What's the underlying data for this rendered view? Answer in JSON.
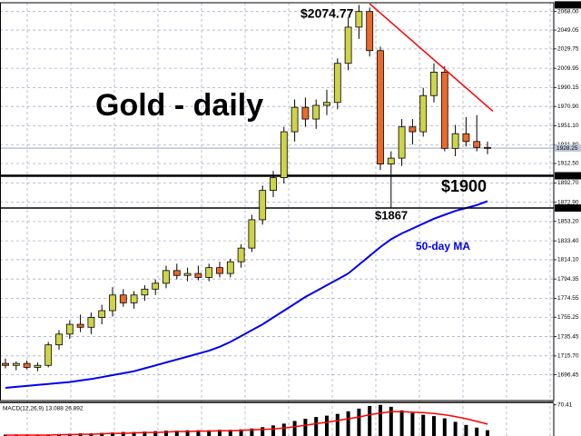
{
  "chart_data": [
    {
      "type": "candlestick",
      "title": "Gold - daily",
      "open": [
        1708,
        1706,
        1708,
        1704,
        1706,
        1727,
        1738,
        1748,
        1745,
        1755,
        1762,
        1778,
        1770,
        1778,
        1784,
        1790,
        1803,
        1798,
        1800,
        1796,
        1806,
        1800,
        1812,
        1826,
        1855,
        1885,
        1898,
        1945,
        1970,
        1958,
        1972,
        1975,
        2015,
        2052,
        2068,
        2028,
        1912,
        1918,
        1950,
        1945,
        1982,
        2006,
        1928,
        1943,
        1935,
        1929
      ],
      "high": [
        1713,
        1710,
        1711,
        1709,
        1730,
        1742,
        1752,
        1758,
        1760,
        1768,
        1786,
        1784,
        1782,
        1788,
        1794,
        1808,
        1810,
        1806,
        1808,
        1810,
        1812,
        1815,
        1830,
        1860,
        1890,
        1905,
        1950,
        1978,
        1980,
        1978,
        1988,
        2020,
        2062,
        2074.77,
        2072,
        2032,
        1925,
        1958,
        1958,
        1990,
        2015,
        2012,
        1952,
        1960,
        1962,
        1935
      ],
      "low": [
        1703,
        1701,
        1702,
        1700,
        1704,
        1722,
        1733,
        1740,
        1738,
        1748,
        1756,
        1766,
        1764,
        1772,
        1778,
        1785,
        1794,
        1792,
        1793,
        1792,
        1796,
        1796,
        1806,
        1822,
        1850,
        1878,
        1892,
        1935,
        1950,
        1948,
        1962,
        1968,
        2008,
        2040,
        2022,
        1906,
        1867,
        1910,
        1932,
        1940,
        1975,
        1925,
        1920,
        1930,
        1925,
        1922
      ],
      "close": [
        1706,
        1708,
        1704,
        1706,
        1727,
        1738,
        1748,
        1745,
        1755,
        1762,
        1778,
        1770,
        1778,
        1784,
        1790,
        1803,
        1798,
        1800,
        1796,
        1806,
        1800,
        1812,
        1826,
        1855,
        1885,
        1898,
        1945,
        1970,
        1958,
        1972,
        1975,
        2015,
        2052,
        2068,
        2028,
        1912,
        1918,
        1950,
        1945,
        1982,
        2006,
        1928,
        1943,
        1935,
        1929,
        1928
      ],
      "up_color": "#cdd44a",
      "down_color": "#ea6a2c",
      "ylim": [
        1670,
        2077
      ],
      "yticks": [
        {
          "value": 2068,
          "label": "2068.00"
        },
        {
          "value": 2049.05,
          "label": "2049.05"
        },
        {
          "value": 2029.75,
          "label": "2029.75"
        },
        {
          "value": 2009.95,
          "label": "2009.95"
        },
        {
          "value": 1990.15,
          "label": "1990.15"
        },
        {
          "value": 1970.9,
          "label": "1970.90"
        },
        {
          "value": 1951.1,
          "label": "1951.10"
        },
        {
          "value": 1931.8,
          "label": "1931.80"
        },
        {
          "value": 1912.5,
          "label": "1912.50"
        },
        {
          "value": 1892.7,
          "label": "1892.70"
        },
        {
          "value": 1872.9,
          "label": "1872.90"
        },
        {
          "value": 1853.2,
          "label": "1853.20"
        },
        {
          "value": 1833.4,
          "label": "1833.40"
        },
        {
          "value": 1814.1,
          "label": "1814.10"
        },
        {
          "value": 1794.35,
          "label": "1794.35"
        },
        {
          "value": 1774.55,
          "label": "1774.55"
        },
        {
          "value": 1755.25,
          "label": "1755.25"
        },
        {
          "value": 1735.45,
          "label": "1735.45"
        },
        {
          "value": 1715.7,
          "label": "1715.70"
        },
        {
          "value": 1696.45,
          "label": "1696.45"
        }
      ],
      "grid": true,
      "ma": {
        "name": "50-day MA",
        "color": "#0000ee",
        "values": [
          1683,
          1684,
          1685,
          1686,
          1687,
          1688,
          1689,
          1690.5,
          1692,
          1694,
          1696,
          1698,
          1700,
          1703,
          1706,
          1709,
          1712,
          1715,
          1718,
          1721,
          1725,
          1730,
          1736,
          1742,
          1748,
          1755,
          1762,
          1769,
          1776,
          1782,
          1788,
          1794,
          1800,
          1809,
          1818,
          1827,
          1835,
          1841,
          1846,
          1851,
          1856,
          1860,
          1864,
          1867,
          1870,
          1874
        ]
      },
      "levels": [
        {
          "value": 1900,
          "label": "1900.00",
          "annotation": "$1900"
        },
        {
          "value": 1867,
          "label": "1867.00",
          "annotation": "$1867"
        }
      ],
      "peak": {
        "value": 2074.77,
        "label": "2074.77",
        "annotation": "$2074.77"
      },
      "current": {
        "value": 1928.25,
        "label": "1928.25"
      },
      "trend_line": {
        "color": "#ff0000",
        "x": [
          34,
          45.5
        ],
        "y": [
          2076,
          1966
        ]
      }
    },
    {
      "type": "macd",
      "title": "MACD(12,26,9) 13.088 26.892",
      "values": [
        3,
        3,
        2,
        2,
        3,
        4,
        5,
        6,
        6,
        7,
        8,
        9,
        9,
        10,
        11,
        12,
        12,
        13,
        13,
        13,
        14,
        14,
        15,
        17,
        20,
        24,
        28,
        34,
        39,
        43,
        46,
        50,
        56,
        62,
        68,
        70.41,
        66,
        58,
        52,
        48,
        45,
        40,
        32,
        25,
        19,
        13.088
      ],
      "signal": {
        "color": "#ff0000",
        "values": [
          2,
          2,
          2,
          2,
          2,
          3,
          3,
          4,
          4,
          5,
          6,
          6,
          7,
          8,
          8,
          9,
          10,
          10,
          11,
          11,
          12,
          12,
          13,
          14,
          15,
          16,
          18,
          21,
          24,
          28,
          31,
          35,
          39,
          43,
          48,
          52,
          55,
          55,
          54,
          53,
          51,
          48,
          44,
          39,
          33,
          26.892
        ]
      },
      "color": "#000000",
      "ylim": [
        0,
        74
      ],
      "yticks": [
        {
          "value": 70.41,
          "label": "70.41"
        }
      ]
    }
  ]
}
